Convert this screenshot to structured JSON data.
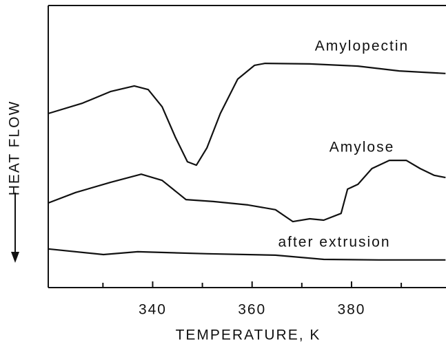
{
  "chart_data": {
    "type": "line",
    "x_label": "TEMPERATURE, K",
    "y_label": "HEAT FLOW",
    "xlim": [
      319,
      399
    ],
    "ylim": [
      0,
      100
    ],
    "xticks": [
      340,
      360,
      380
    ],
    "x_minor_ticks": [
      330,
      350,
      370,
      390
    ],
    "series": [
      {
        "name": "Amylopectin",
        "color": "#111111",
        "x": [
          319,
          325.9,
          331.5,
          336.3,
          339.1,
          341.9,
          344.6,
          347.0,
          348.8,
          350.9,
          353.6,
          357.1,
          360.5,
          362.6,
          371.6,
          381.3,
          389.6,
          398.9
        ],
        "values": [
          61.7,
          65.4,
          69.5,
          71.5,
          70.2,
          64.1,
          53.2,
          44.6,
          43.4,
          49.5,
          61.7,
          73.9,
          78.8,
          79.5,
          79.3,
          78.5,
          76.8,
          75.9
        ]
      },
      {
        "name": "Amylose",
        "color": "#111111",
        "x": [
          319,
          324.5,
          331.5,
          337.7,
          341.9,
          346.7,
          352.2,
          359.2,
          364.7,
          368.2,
          371.6,
          374.4,
          377.9,
          379.2,
          381.3,
          384.1,
          387.6,
          391.0,
          393.8,
          396.6,
          398.9
        ],
        "values": [
          30.0,
          33.7,
          37.3,
          40.2,
          38.0,
          31.2,
          30.5,
          29.3,
          27.6,
          23.4,
          24.4,
          23.9,
          26.3,
          34.9,
          36.6,
          42.2,
          45.1,
          45.1,
          42.2,
          39.8,
          39.0
        ]
      },
      {
        "name": "after extrusion",
        "color": "#111111",
        "x": [
          319,
          330.1,
          337.0,
          350.9,
          364.7,
          374.4,
          385.5,
          398.9
        ],
        "values": [
          13.7,
          11.7,
          12.7,
          12.0,
          11.5,
          10.0,
          9.8,
          9.8
        ]
      }
    ]
  }
}
